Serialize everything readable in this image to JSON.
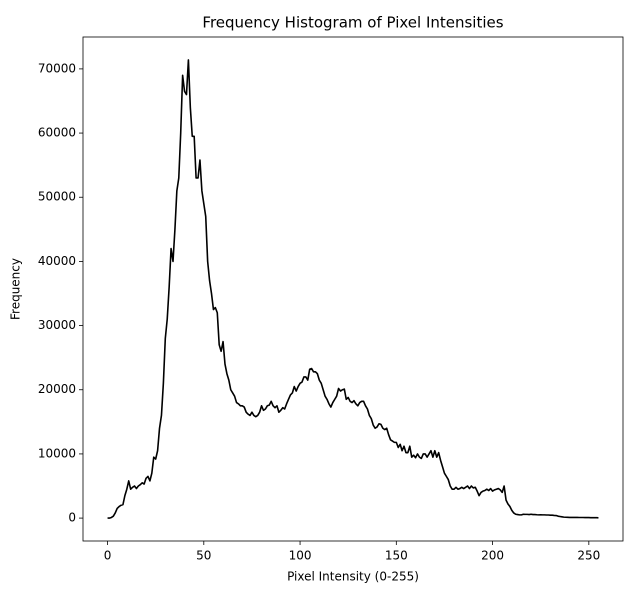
{
  "chart_data": {
    "type": "line",
    "title": "Frequency Histogram of Pixel Intensities",
    "x_label": "Pixel Intensity (0-255)",
    "y_label": "Frequency",
    "color": "#000000",
    "grid": false,
    "xlim": [
      -12.75,
      267.75
    ],
    "xticks": [
      0,
      50,
      100,
      150,
      200,
      250
    ],
    "ylim": [
      -3570,
      74970
    ],
    "yticks": [
      0,
      10000,
      20000,
      30000,
      40000,
      50000,
      60000,
      70000
    ],
    "x": [
      0,
      1,
      2,
      3,
      4,
      5,
      6,
      7,
      8,
      9,
      10,
      11,
      12,
      13,
      14,
      15,
      16,
      17,
      18,
      19,
      20,
      21,
      22,
      23,
      24,
      25,
      26,
      27,
      28,
      29,
      30,
      31,
      32,
      33,
      34,
      35,
      36,
      37,
      38,
      39,
      40,
      41,
      42,
      43,
      44,
      45,
      46,
      47,
      48,
      49,
      50,
      51,
      52,
      53,
      54,
      55,
      56,
      57,
      58,
      59,
      60,
      61,
      62,
      63,
      64,
      65,
      66,
      67,
      68,
      69,
      70,
      71,
      72,
      73,
      74,
      75,
      76,
      77,
      78,
      79,
      80,
      81,
      82,
      83,
      84,
      85,
      86,
      87,
      88,
      89,
      90,
      91,
      92,
      93,
      94,
      95,
      96,
      97,
      98,
      99,
      100,
      101,
      102,
      103,
      104,
      105,
      106,
      107,
      108,
      109,
      110,
      111,
      112,
      113,
      114,
      115,
      116,
      117,
      118,
      119,
      120,
      121,
      122,
      123,
      124,
      125,
      126,
      127,
      128,
      129,
      130,
      131,
      132,
      133,
      134,
      135,
      136,
      137,
      138,
      139,
      140,
      141,
      142,
      143,
      144,
      145,
      146,
      147,
      148,
      149,
      150,
      151,
      152,
      153,
      154,
      155,
      156,
      157,
      158,
      159,
      160,
      161,
      162,
      163,
      164,
      165,
      166,
      167,
      168,
      169,
      170,
      171,
      172,
      173,
      174,
      175,
      176,
      177,
      178,
      179,
      180,
      181,
      182,
      183,
      184,
      185,
      186,
      187,
      188,
      189,
      190,
      191,
      192,
      193,
      194,
      195,
      196,
      197,
      198,
      199,
      200,
      201,
      202,
      203,
      204,
      205,
      206,
      207,
      208,
      209,
      210,
      211,
      212,
      213,
      214,
      215,
      216,
      217,
      218,
      219,
      220,
      221,
      222,
      223,
      224,
      225,
      226,
      227,
      228,
      229,
      230,
      231,
      232,
      233,
      234,
      235,
      236,
      237,
      238,
      239,
      240,
      241,
      242,
      243,
      244,
      245,
      246,
      247,
      248,
      249,
      250,
      251,
      252,
      253,
      254,
      255
    ],
    "values": [
      0,
      0,
      100,
      300,
      800,
      1500,
      1800,
      2000,
      2100,
      3500,
      4500,
      5800,
      4500,
      4800,
      5000,
      4600,
      5000,
      5200,
      5500,
      5300,
      6200,
      6500,
      5800,
      7000,
      9500,
      9200,
      10500,
      14000,
      16000,
      21000,
      28000,
      31000,
      36000,
      42000,
      40000,
      45000,
      51000,
      53000,
      60000,
      69000,
      66500,
      66000,
      71400,
      64000,
      59500,
      59500,
      53000,
      53000,
      55800,
      51000,
      49000,
      47000,
      40000,
      37000,
      35000,
      32500,
      32800,
      32000,
      27000,
      26000,
      27500,
      24000,
      22500,
      21500,
      20000,
      19500,
      19000,
      18000,
      17800,
      17500,
      17500,
      17300,
      16500,
      16200,
      16000,
      16500,
      16000,
      15800,
      16000,
      16500,
      17500,
      16800,
      17000,
      17500,
      17600,
      18200,
      17500,
      17200,
      17500,
      16500,
      16800,
      17200,
      17000,
      17800,
      18500,
      19200,
      19500,
      20500,
      19800,
      20500,
      21000,
      21200,
      22000,
      22000,
      21500,
      23200,
      23300,
      22800,
      22800,
      22500,
      21500,
      21000,
      20000,
      19000,
      18500,
      17800,
      17300,
      18000,
      18500,
      19000,
      20200,
      19800,
      20000,
      20100,
      18500,
      18800,
      18200,
      18000,
      18300,
      17800,
      17500,
      18000,
      18200,
      18200,
      17500,
      17000,
      16000,
      15500,
      14500,
      14000,
      14200,
      14700,
      14600,
      14000,
      13800,
      14000,
      13000,
      12200,
      12000,
      11800,
      11800,
      11000,
      11500,
      10500,
      11200,
      10200,
      10200,
      11200,
      9500,
      9800,
      9400,
      10000,
      9500,
      9300,
      10000,
      10000,
      9500,
      10000,
      10500,
      9500,
      10500,
      9500,
      10200,
      9000,
      8000,
      7000,
      6500,
      6000,
      5000,
      4500,
      4500,
      4800,
      4500,
      4600,
      4800,
      4600,
      4800,
      5000,
      4600,
      5000,
      4700,
      4800,
      4200,
      3500,
      4000,
      4200,
      4300,
      4500,
      4300,
      4600,
      4200,
      4400,
      4500,
      4600,
      4400,
      4000,
      5000,
      2800,
      2200,
      1800,
      1200,
      800,
      600,
      550,
      500,
      500,
      600,
      580,
      580,
      550,
      600,
      550,
      550,
      520,
      500,
      520,
      500,
      500,
      480,
      480,
      450,
      450,
      420,
      400,
      300,
      250,
      200,
      150,
      130,
      120,
      110,
      100,
      100,
      100,
      100,
      90,
      90,
      90,
      80,
      80,
      80,
      70,
      70,
      60,
      60,
      50
    ]
  }
}
